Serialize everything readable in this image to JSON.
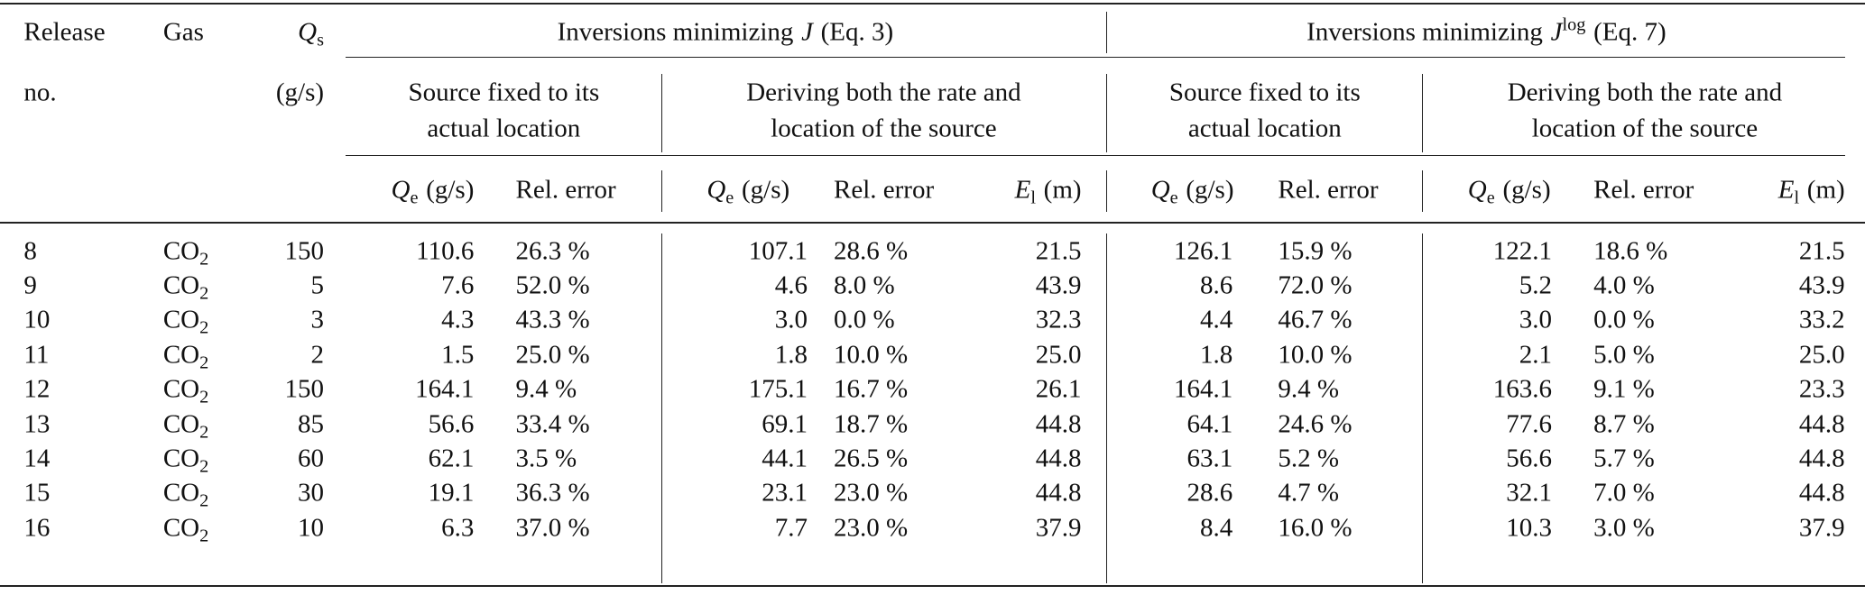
{
  "header": {
    "release": [
      "Release",
      "no."
    ],
    "gas": "Gas",
    "qs": {
      "sym": "Q",
      "sub": "s",
      "unit": "(g/s)"
    },
    "groups": [
      {
        "prefix": "Inversions minimizing",
        "sym": "J",
        "eq": "(Eq. 3)"
      },
      {
        "prefix": "Inversions minimizing",
        "sym": "J",
        "sup": "log",
        "eq": "(Eq. 7)"
      }
    ],
    "subgroups": [
      [
        "Source fixed to its",
        "actual location"
      ],
      [
        "Deriving both the rate and",
        "location of the source"
      ],
      [
        "Source fixed to its",
        "actual location"
      ],
      [
        "Deriving both the rate and",
        "location of the source"
      ]
    ],
    "columns": [
      {
        "sym": "Q",
        "sub": "e",
        "unit": "(g/s)"
      },
      {
        "text": "Rel. error"
      },
      {
        "sym": "Q",
        "sub": "e",
        "unit": "(g/s)"
      },
      {
        "text": "Rel. error"
      },
      {
        "sym": "E",
        "sub": "l",
        "unit": "(m)"
      },
      {
        "sym": "Q",
        "sub": "e",
        "unit": "(g/s)"
      },
      {
        "text": "Rel. error"
      },
      {
        "sym": "Q",
        "sub": "e",
        "unit": "(g/s)"
      },
      {
        "text": "Rel. error"
      },
      {
        "sym": "E",
        "sub": "l",
        "unit": "(m)"
      }
    ]
  },
  "rows": [
    {
      "release": "8",
      "gas": {
        "base": "CO",
        "sub": "2"
      },
      "values": [
        "150",
        "110.6",
        "26.3 %",
        "107.1",
        "28.6 %",
        "21.5",
        "126.1",
        "15.9 %",
        "122.1",
        "18.6 %",
        "21.5"
      ]
    },
    {
      "release": "9",
      "gas": {
        "base": "CO",
        "sub": "2"
      },
      "values": [
        "5",
        "7.6",
        "52.0 %",
        "4.6",
        "8.0 %",
        "43.9",
        "8.6",
        "72.0 %",
        "5.2",
        "4.0 %",
        "43.9"
      ]
    },
    {
      "release": "10",
      "gas": {
        "base": "CO",
        "sub": "2"
      },
      "values": [
        "3",
        "4.3",
        "43.3 %",
        "3.0",
        "0.0 %",
        "32.3",
        "4.4",
        "46.7 %",
        "3.0",
        "0.0 %",
        "33.2"
      ]
    },
    {
      "release": "11",
      "gas": {
        "base": "CO",
        "sub": "2"
      },
      "values": [
        "2",
        "1.5",
        "25.0 %",
        "1.8",
        "10.0 %",
        "25.0",
        "1.8",
        "10.0 %",
        "2.1",
        "5.0 %",
        "25.0"
      ]
    },
    {
      "release": "12",
      "gas": {
        "base": "CO",
        "sub": "2"
      },
      "values": [
        "150",
        "164.1",
        "9.4 %",
        "175.1",
        "16.7 %",
        "26.1",
        "164.1",
        "9.4 %",
        "163.6",
        "9.1 %",
        "23.3"
      ]
    },
    {
      "release": "13",
      "gas": {
        "base": "CO",
        "sub": "2"
      },
      "values": [
        "85",
        "56.6",
        "33.4 %",
        "69.1",
        "18.7 %",
        "44.8",
        "64.1",
        "24.6 %",
        "77.6",
        "8.7 %",
        "44.8"
      ]
    },
    {
      "release": "14",
      "gas": {
        "base": "CO",
        "sub": "2"
      },
      "values": [
        "60",
        "62.1",
        "3.5 %",
        "44.1",
        "26.5 %",
        "44.8",
        "63.1",
        "5.2 %",
        "56.6",
        "5.7 %",
        "44.8"
      ]
    },
    {
      "release": "15",
      "gas": {
        "base": "CO",
        "sub": "2"
      },
      "values": [
        "30",
        "19.1",
        "36.3 %",
        "23.1",
        "23.0 %",
        "44.8",
        "28.6",
        "4.7 %",
        "32.1",
        "7.0 %",
        "44.8"
      ]
    },
    {
      "release": "16",
      "gas": {
        "base": "CO",
        "sub": "2"
      },
      "values": [
        "10",
        "6.3",
        "37.0 %",
        "7.7",
        "23.0 %",
        "37.9",
        "8.4",
        "16.0 %",
        "10.3",
        "3.0 %",
        "37.9"
      ]
    }
  ]
}
